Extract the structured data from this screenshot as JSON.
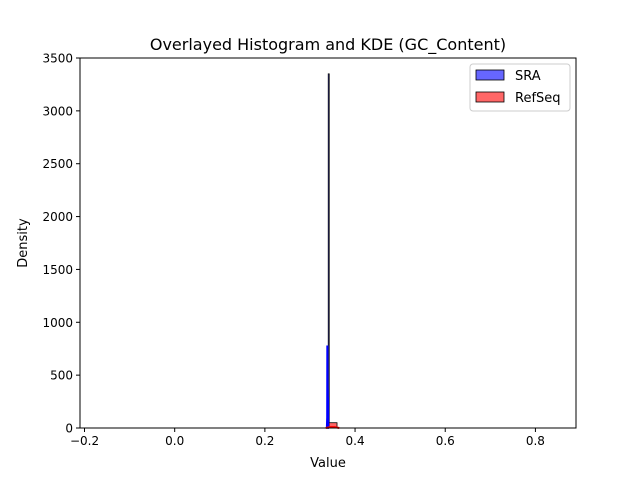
{
  "chart_data": {
    "type": "histogram",
    "title": "Overlayed Histogram and KDE (GC_Content)",
    "xlabel": "Value",
    "ylabel": "Density",
    "xlim": [
      -0.21,
      0.89
    ],
    "ylim": [
      0,
      3500
    ],
    "xticks": [
      -0.2,
      0.0,
      0.2,
      0.4,
      0.6,
      0.8
    ],
    "xtick_labels": [
      "−0.2",
      "0.0",
      "0.2",
      "0.4",
      "0.6",
      "0.8"
    ],
    "yticks": [
      0,
      500,
      1000,
      1500,
      2000,
      2500,
      3000,
      3500
    ],
    "ytick_labels": [
      "0",
      "500",
      "1000",
      "1500",
      "2000",
      "2500",
      "3000",
      "3500"
    ],
    "grid": false,
    "legend_position": "upper right",
    "series": [
      {
        "name": "SRA",
        "color": "#0000ff",
        "alpha": 0.6,
        "bars": [
          {
            "x0": 0.3405,
            "x1": 0.3415,
            "density": 3350
          }
        ],
        "kde": {
          "x": [
            0.3375,
            0.3382,
            0.3385,
            0.339,
            0.3393,
            0.3397,
            0.3401,
            0.3405,
            0.341,
            0.3417
          ],
          "y": [
            0,
            100,
            780,
            280,
            380,
            120,
            290,
            40,
            0,
            0
          ]
        }
      },
      {
        "name": "RefSeq",
        "color": "#ff0000",
        "alpha": 0.6,
        "bars": [
          {
            "x0": 0.3418,
            "x1": 0.36,
            "density": 50
          }
        ],
        "kde": {
          "x": [
            0.335,
            0.345,
            0.355,
            0.365
          ],
          "y": [
            0,
            8,
            8,
            0
          ]
        }
      }
    ]
  }
}
